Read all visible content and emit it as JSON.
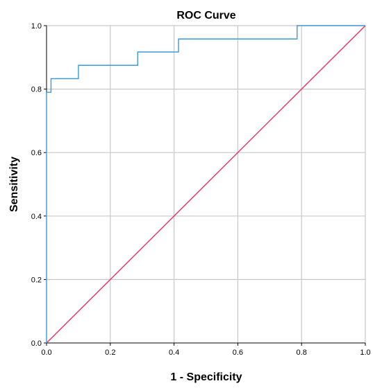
{
  "chart_data": {
    "type": "line",
    "title": "ROC Curve",
    "xlabel": "1 - Specificity",
    "ylabel": "Sensitivity",
    "xlim": [
      0,
      1
    ],
    "ylim": [
      0,
      1
    ],
    "grid": true,
    "x_ticks": [
      "0.0",
      "0.2",
      "0.4",
      "0.6",
      "0.8",
      "1.0"
    ],
    "y_ticks": [
      "0.0",
      "0.2",
      "0.4",
      "0.6",
      "0.8",
      "1.0"
    ],
    "series": [
      {
        "color": "#3a9ad9",
        "points": [
          [
            0.0,
            0.0
          ],
          [
            0.0,
            0.79
          ],
          [
            0.014,
            0.79
          ],
          [
            0.014,
            0.833
          ],
          [
            0.1,
            0.833
          ],
          [
            0.1,
            0.875
          ],
          [
            0.286,
            0.875
          ],
          [
            0.286,
            0.917
          ],
          [
            0.414,
            0.917
          ],
          [
            0.414,
            0.958
          ],
          [
            0.786,
            0.958
          ],
          [
            0.786,
            1.0
          ],
          [
            1.0,
            1.0
          ]
        ]
      },
      {
        "color": "#e8305e",
        "points": [
          [
            0.0,
            0.0
          ],
          [
            1.0,
            1.0
          ]
        ]
      }
    ]
  }
}
